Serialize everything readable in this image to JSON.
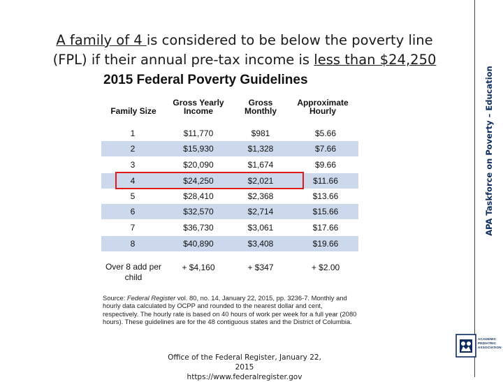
{
  "slide": {
    "title": {
      "part1": "A family of 4 ",
      "part2": "is considered to be below the poverty line (FPL) if their annual pre-tax income is ",
      "part3": "less than $24,250"
    },
    "sidebar_text": "APA Taskforce on Poverty – Education",
    "logo_text": "ACADEMIC PEDIATRIC ASSOCIATION",
    "caption_line1": "Office of the Federal Register, January 22, 2015",
    "caption_line2": "https://www.federalregister.gov"
  },
  "table": {
    "heading": "2015 Federal Poverty Guidelines",
    "headers": {
      "family_size": "Family Size",
      "gross_yearly_1": "Gross Yearly",
      "gross_yearly_2": "Income",
      "gross_monthly_1": "Gross",
      "gross_monthly_2": "Monthly",
      "approx_hourly_1": "Approximate",
      "approx_hourly_2": "Hourly"
    },
    "rows": [
      {
        "size": "1",
        "yearly": "$11,770",
        "monthly": "$981",
        "hourly": "$5.66"
      },
      {
        "size": "2",
        "yearly": "$15,930",
        "monthly": "$1,328",
        "hourly": "$7.66"
      },
      {
        "size": "3",
        "yearly": "$20,090",
        "monthly": "$1,674",
        "hourly": "$9.66"
      },
      {
        "size": "4",
        "yearly": "$24,250",
        "monthly": "$2,021",
        "hourly": "$11.66"
      },
      {
        "size": "5",
        "yearly": "$28,410",
        "monthly": "$2,368",
        "hourly": "$13.66"
      },
      {
        "size": "6",
        "yearly": "$32,570",
        "monthly": "$2,714",
        "hourly": "$15.66"
      },
      {
        "size": "7",
        "yearly": "$36,730",
        "monthly": "$3,061",
        "hourly": "$17.66"
      },
      {
        "size": "8",
        "yearly": "$40,890",
        "monthly": "$3,408",
        "hourly": "$19.66"
      }
    ],
    "extra": {
      "label_1": "Over 8 add per",
      "label_2": "child",
      "yearly": "+ $4,160",
      "monthly": "+ $347",
      "hourly": "+ $2.00"
    },
    "source": {
      "prefix": "Source: ",
      "journal": "Federal Register",
      "rest": " vol. 80, no. 14, January 22, 2015, pp. 3236-7. Monthly and hourly data calculated by OCPP and rounded to the nearest dollar and cent, respectively. The hourly rate is based on 40 hours of work per week for a full year (2080 hours). These guidelines are for the 48 contiguous states and the District of Columbia."
    }
  },
  "colors": {
    "shaded_row": "#ccd9ec",
    "highlight_border": "#e01b1b",
    "sidebar_text": "#0d2b5c"
  }
}
